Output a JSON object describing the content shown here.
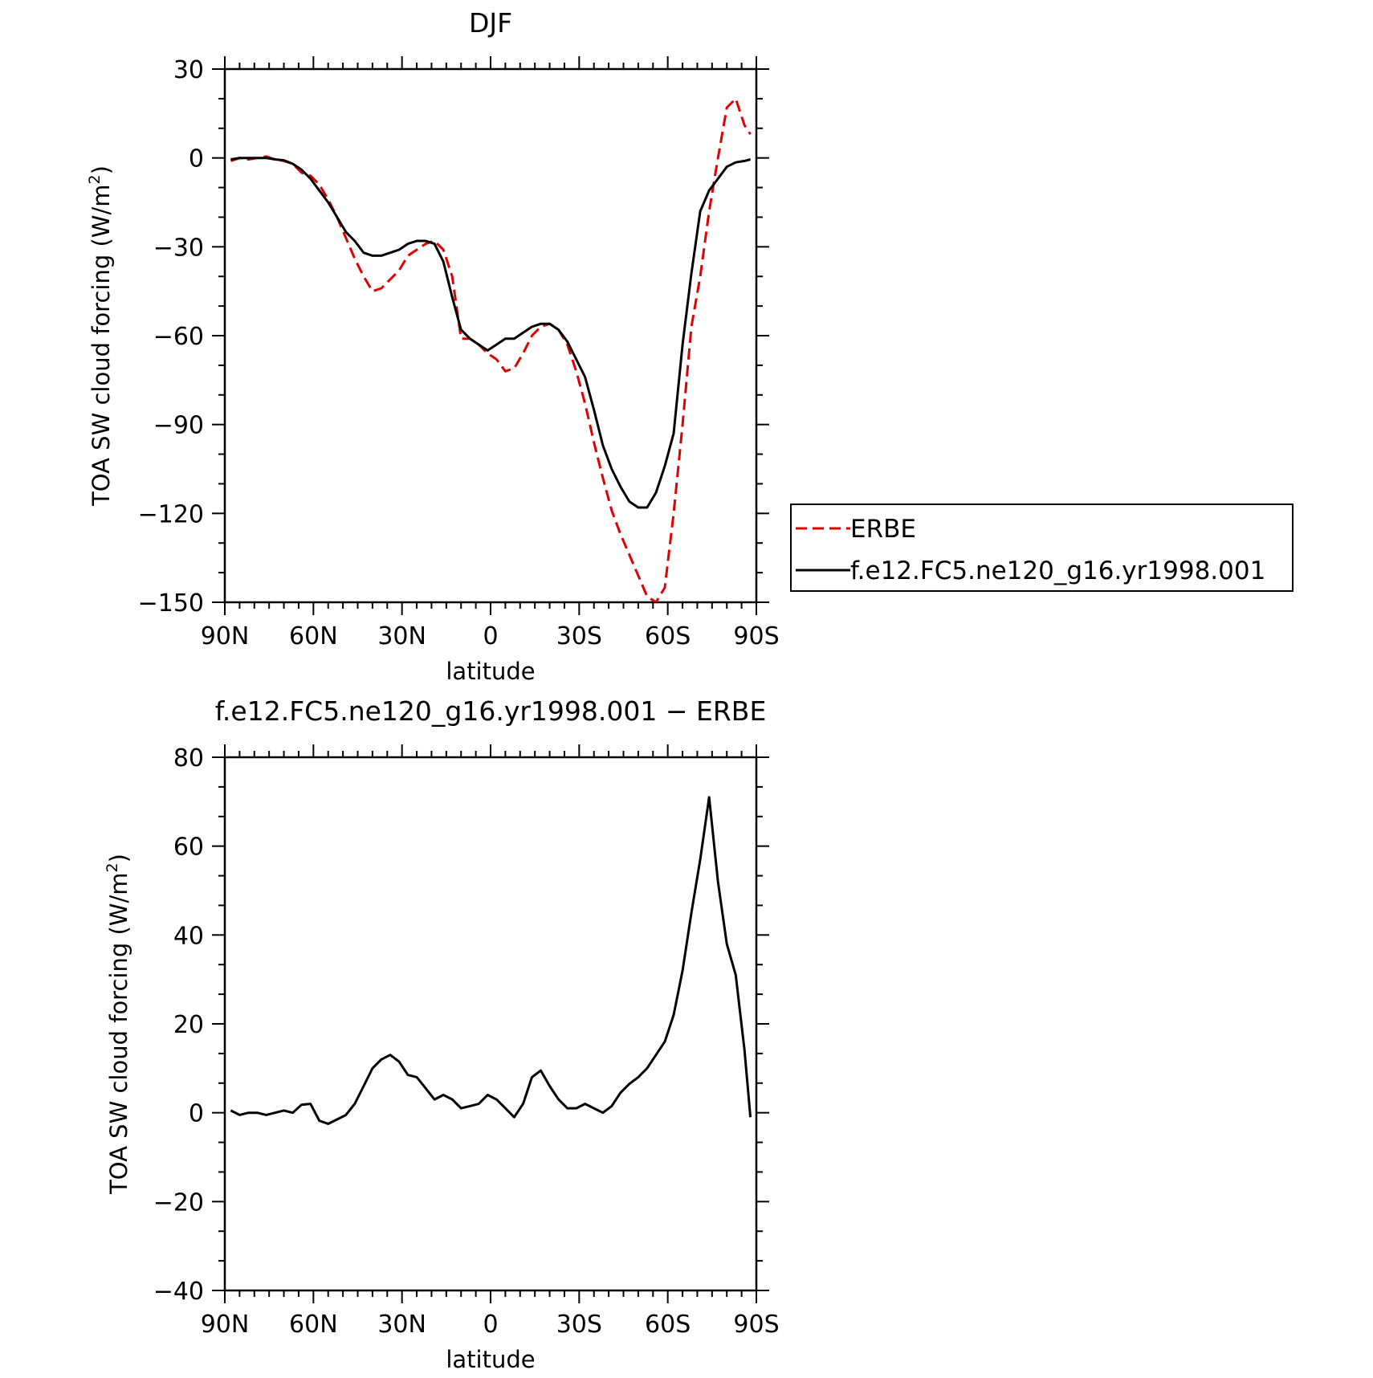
{
  "chart_data": [
    {
      "type": "line",
      "title": "DJF",
      "xlabel": "latitude",
      "ylabel": "TOA SW cloud forcing (W/m",
      "ylabel_sup": "2",
      "ylabel_close": ")",
      "xlim": [
        -90,
        90
      ],
      "ylim": [
        -150,
        30
      ],
      "x_ticks": [
        {
          "value": -90,
          "label": "90N"
        },
        {
          "value": -60,
          "label": "60N"
        },
        {
          "value": -30,
          "label": "30N"
        },
        {
          "value": 0,
          "label": "0"
        },
        {
          "value": 30,
          "label": "30S"
        },
        {
          "value": 60,
          "label": "60S"
        },
        {
          "value": 90,
          "label": "90S"
        }
      ],
      "y_ticks": [
        30,
        0,
        -30,
        -60,
        -90,
        -120,
        -150
      ],
      "y_tick_labels": [
        "30",
        "0",
        "−30",
        "−60",
        "−90",
        "−120",
        "−150"
      ],
      "legend": {
        "placement": "right"
      },
      "series": [
        {
          "name": "ERBE",
          "color": "#e00000",
          "dash": "dashed",
          "x": [
            -88,
            -85,
            -82,
            -79,
            -76,
            -73,
            -70,
            -67,
            -64,
            -61,
            -58,
            -55,
            -52,
            -49,
            -46,
            -43,
            -40,
            -37,
            -34,
            -31,
            -28,
            -25,
            -22,
            -19,
            -16,
            -13,
            -10,
            -7,
            -4,
            -1,
            2,
            5,
            8,
            11,
            14,
            17,
            20,
            23,
            26,
            29,
            32,
            35,
            38,
            41,
            44,
            47,
            50,
            53,
            56,
            59,
            62,
            65,
            68,
            71,
            74,
            77,
            80,
            83,
            86,
            88
          ],
          "y": [
            -1,
            0,
            -0.5,
            0,
            0.5,
            -0.5,
            -1,
            -2,
            -5,
            -6,
            -9,
            -14,
            -20,
            -27,
            -34,
            -40,
            -45,
            -44,
            -41,
            -38,
            -33,
            -31,
            -29,
            -28,
            -31,
            -40,
            -61,
            -61,
            -63,
            -66,
            -68,
            -72,
            -71,
            -66,
            -60,
            -57,
            -56,
            -58,
            -63,
            -72,
            -83,
            -96,
            -108,
            -119,
            -127,
            -134,
            -141,
            -148,
            -150,
            -145,
            -120,
            -90,
            -57,
            -40,
            -18,
            0,
            17,
            20,
            11,
            8
          ]
        },
        {
          "name": "f.e12.FC5.ne120_g16.yr1998.001",
          "color": "#000000",
          "dash": "solid",
          "x": [
            -88,
            -85,
            -82,
            -79,
            -76,
            -73,
            -70,
            -67,
            -64,
            -61,
            -58,
            -55,
            -52,
            -49,
            -46,
            -43,
            -40,
            -37,
            -34,
            -31,
            -28,
            -25,
            -22,
            -19,
            -16,
            -13,
            -10,
            -7,
            -4,
            -1,
            2,
            5,
            8,
            11,
            14,
            17,
            20,
            23,
            26,
            29,
            32,
            35,
            38,
            41,
            44,
            47,
            50,
            53,
            56,
            59,
            62,
            65,
            68,
            71,
            74,
            77,
            80,
            83,
            86,
            88
          ],
          "y": [
            -0.5,
            0,
            0,
            0,
            0,
            -0.5,
            -0.8,
            -2,
            -4,
            -7,
            -11,
            -15,
            -20,
            -25,
            -28,
            -32,
            -33,
            -33,
            -32,
            -31,
            -29,
            -28,
            -28,
            -29,
            -35,
            -47,
            -58,
            -61,
            -63,
            -65,
            -63,
            -61,
            -61,
            -59,
            -57,
            -56,
            -56,
            -58,
            -62,
            -68,
            -74,
            -85,
            -97,
            -105,
            -111,
            -116,
            -118,
            -118,
            -113,
            -104,
            -93,
            -63,
            -39,
            -18,
            -11,
            -7,
            -3,
            -1.5,
            -1,
            -0.5
          ]
        }
      ]
    },
    {
      "type": "line",
      "title": "f.e12.FC5.ne120_g16.yr1998.001 − ERBE",
      "xlabel": "latitude",
      "ylabel": "TOA SW cloud forcing (W/m",
      "ylabel_sup": "2",
      "ylabel_close": ")",
      "xlim": [
        -90,
        90
      ],
      "ylim": [
        -40,
        80
      ],
      "x_ticks": [
        {
          "value": -90,
          "label": "90N"
        },
        {
          "value": -60,
          "label": "60N"
        },
        {
          "value": -30,
          "label": "30N"
        },
        {
          "value": 0,
          "label": "0"
        },
        {
          "value": 30,
          "label": "30S"
        },
        {
          "value": 60,
          "label": "60S"
        },
        {
          "value": 90,
          "label": "90S"
        }
      ],
      "y_ticks": [
        80,
        60,
        40,
        20,
        0,
        -20,
        -40
      ],
      "y_tick_labels": [
        "80",
        "60",
        "40",
        "20",
        "0",
        "−20",
        "−40"
      ],
      "series": [
        {
          "color": "#000000",
          "dash": "solid",
          "x": [
            -88,
            -85,
            -82,
            -79,
            -76,
            -73,
            -70,
            -67,
            -64,
            -61,
            -58,
            -55,
            -52,
            -49,
            -46,
            -43,
            -40,
            -37,
            -34,
            -31,
            -28,
            -25,
            -22,
            -19,
            -16,
            -13,
            -10,
            -7,
            -4,
            -1,
            2,
            5,
            8,
            11,
            14,
            17,
            20,
            23,
            26,
            29,
            32,
            35,
            38,
            41,
            44,
            47,
            50,
            53,
            56,
            59,
            62,
            65,
            68,
            71,
            74,
            77,
            80,
            83,
            86,
            88
          ],
          "y": [
            0.5,
            -0.5,
            0,
            0,
            -0.5,
            0,
            0.5,
            0,
            1.8,
            2,
            -1.8,
            -2.5,
            -1.5,
            -0.5,
            2,
            6,
            10,
            12,
            13,
            11.5,
            8.5,
            8,
            5.5,
            3,
            4,
            3,
            1,
            1.5,
            2,
            4,
            3,
            1,
            -1,
            2,
            8,
            9.5,
            6,
            3,
            1,
            1,
            2,
            1,
            0,
            1.5,
            4.5,
            6.5,
            8,
            10,
            13,
            16,
            22,
            32,
            45,
            57,
            71,
            52,
            38,
            31,
            14,
            -1
          ]
        }
      ]
    }
  ]
}
